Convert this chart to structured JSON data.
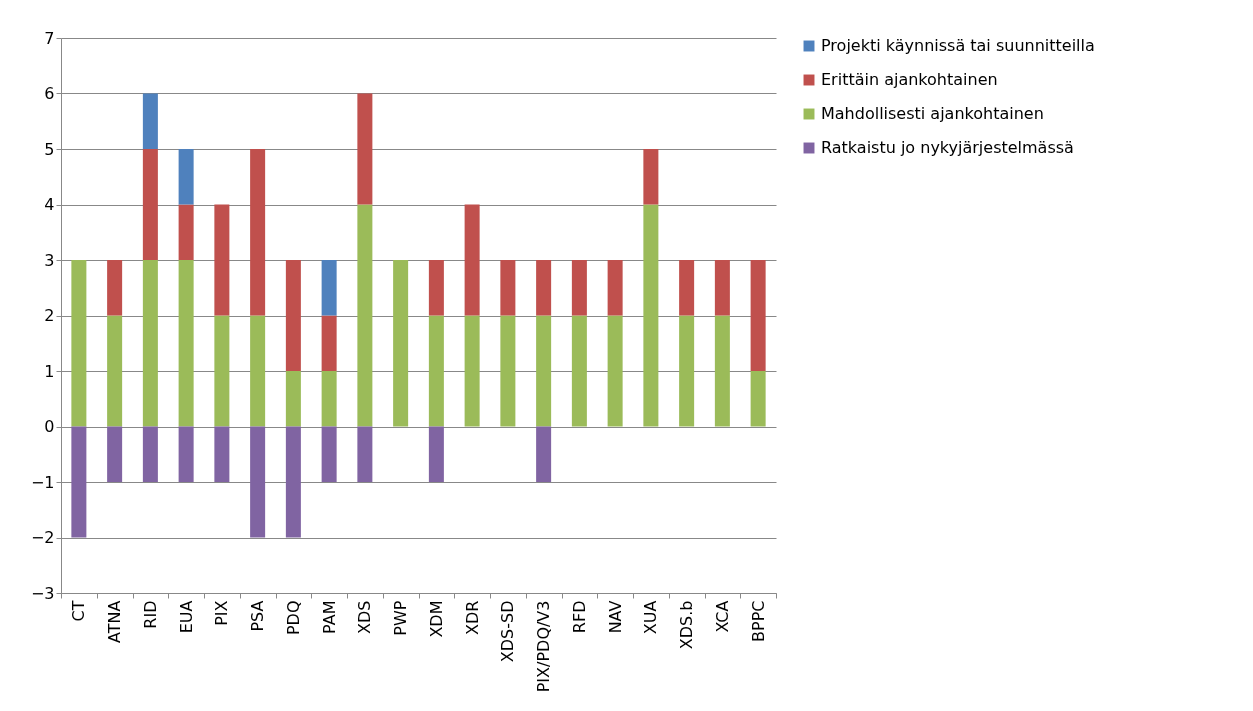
{
  "chart_data": {
    "type": "bar",
    "stacked": true,
    "categories": [
      "CT",
      "ATNA",
      "RID",
      "EUA",
      "PIX",
      "PSA",
      "PDQ",
      "PAM",
      "XDS",
      "PWP",
      "XDM",
      "XDR",
      "XDS-SD",
      "PIX/PDQ/V3",
      "RFD",
      "NAV",
      "XUA",
      "XDS.b",
      "XCA",
      "BPPC"
    ],
    "series": [
      {
        "name": "Mahdollisesti ajankohtainen",
        "color": "#9bbb59",
        "values": [
          3,
          2,
          3,
          3,
          2,
          2,
          1,
          1,
          4,
          3,
          2,
          2,
          2,
          2,
          2,
          2,
          4,
          2,
          2,
          1
        ]
      },
      {
        "name": "Erittäin ajankohtainen",
        "color": "#c0504d",
        "values": [
          null,
          1,
          2,
          1,
          2,
          3,
          2,
          1,
          2,
          null,
          1,
          2,
          1,
          1,
          1,
          1,
          1,
          1,
          1,
          2
        ]
      },
      {
        "name": "Projekti käynnissä tai suunnitteilla",
        "color": "#4f81bd",
        "values": [
          null,
          null,
          1,
          1,
          null,
          null,
          null,
          1,
          null,
          null,
          null,
          null,
          null,
          null,
          null,
          null,
          null,
          null,
          null,
          null
        ]
      },
      {
        "name": "Ratkaistu jo nykyjärjestelmässä",
        "color": "#8064a2",
        "values": [
          -2,
          -1,
          -1,
          -1,
          -1,
          -2,
          -2,
          -1,
          -1,
          null,
          -1,
          null,
          null,
          -1,
          null,
          null,
          null,
          null,
          null,
          null
        ]
      }
    ],
    "ylim": [
      -3,
      7
    ],
    "yticks": [
      -3,
      -2,
      -1,
      0,
      1,
      2,
      3,
      4,
      5,
      6,
      7
    ],
    "grid": "y",
    "legend": "right"
  }
}
